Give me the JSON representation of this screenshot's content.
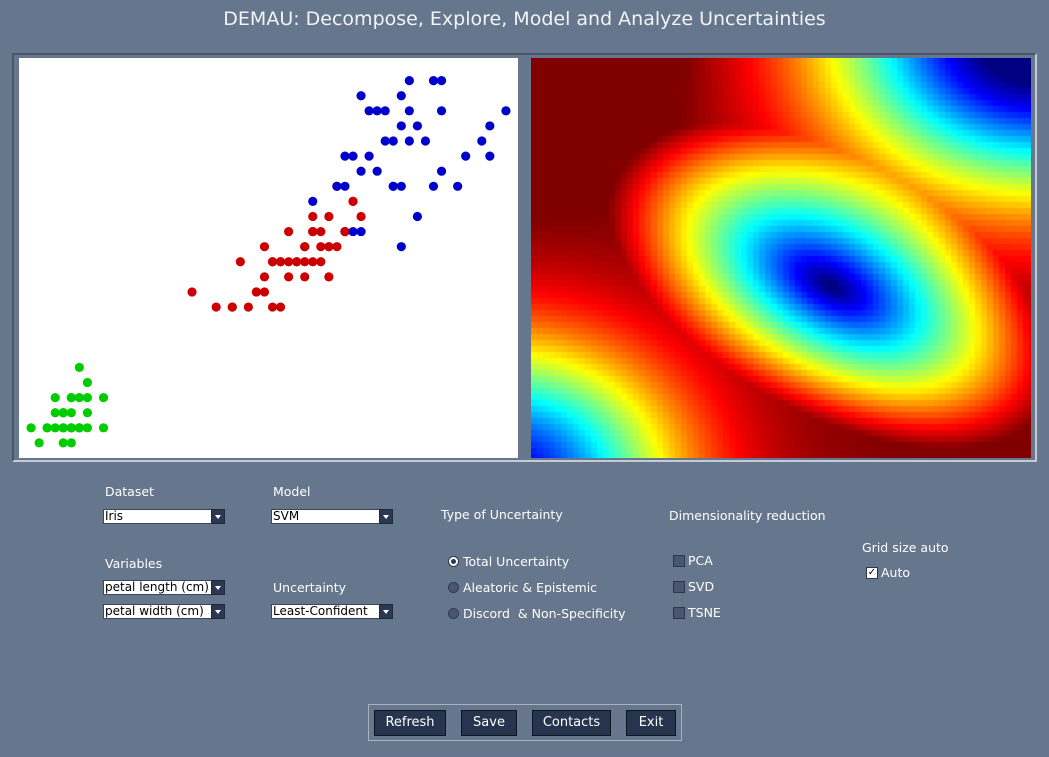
{
  "app": {
    "title": "DEMAU: Decompose, Explore, Model and Analyze Uncertainties"
  },
  "controls": {
    "dataset": {
      "label": "Dataset",
      "value": "Iris"
    },
    "model": {
      "label": "Model",
      "value": "SVM"
    },
    "variables": {
      "label": "Variables",
      "x_value": "petal length (cm)",
      "y_value": "petal width (cm)"
    },
    "uncertainty": {
      "label": "Uncertainty",
      "value": "Least-Confident"
    },
    "uncertainty_type": {
      "label": "Type of Uncertainty",
      "options": [
        "Total Uncertainty",
        "Aleatoric & Epistemic",
        "Discord  & Non-Specificity"
      ],
      "selected": "Total Uncertainty"
    },
    "dim_reduction": {
      "label": "Dimensionality reduction",
      "options": [
        "PCA",
        "SVD",
        "TSNE"
      ]
    },
    "grid_size": {
      "label": "Grid size auto",
      "checkbox_label": "Auto",
      "checked": true
    }
  },
  "buttons": {
    "refresh": "Refresh",
    "save": "Save",
    "contacts": "Contacts",
    "exit": "Exit"
  },
  "colors": {
    "background": "#66768c",
    "setosa": "#00cc00",
    "versicolor": "#cc0000",
    "virginica": "#0000cc"
  },
  "chart_data": [
    {
      "type": "scatter",
      "xlim": [
        0.85,
        7.05
      ],
      "ylim": [
        0.0,
        2.65
      ],
      "series": [
        {
          "color": "#00cc00",
          "points": [
            [
              1.4,
              0.2
            ],
            [
              1.3,
              0.2
            ],
            [
              1.5,
              0.2
            ],
            [
              1.4,
              0.2
            ],
            [
              1.7,
              0.4
            ],
            [
              1.4,
              0.3
            ],
            [
              1.5,
              0.2
            ],
            [
              1.5,
              0.1
            ],
            [
              1.5,
              0.2
            ],
            [
              1.6,
              0.2
            ],
            [
              1.4,
              0.1
            ],
            [
              1.1,
              0.1
            ],
            [
              1.2,
              0.2
            ],
            [
              1.5,
              0.4
            ],
            [
              1.3,
              0.4
            ],
            [
              1.4,
              0.3
            ],
            [
              1.7,
              0.3
            ],
            [
              1.5,
              0.3
            ],
            [
              1.7,
              0.2
            ],
            [
              1.5,
              0.4
            ],
            [
              1.0,
              0.2
            ],
            [
              1.7,
              0.5
            ],
            [
              1.9,
              0.2
            ],
            [
              1.6,
              0.2
            ],
            [
              1.6,
              0.4
            ],
            [
              1.6,
              0.6
            ],
            [
              1.3,
              0.3
            ],
            [
              1.9,
              0.4
            ],
            [
              1.6,
              0.2
            ],
            [
              1.2,
              0.2
            ],
            [
              1.4,
              0.3
            ]
          ]
        },
        {
          "color": "#cc0000",
          "points": [
            [
              4.7,
              1.4
            ],
            [
              4.5,
              1.5
            ],
            [
              4.9,
              1.5
            ],
            [
              4.0,
              1.3
            ],
            [
              4.6,
              1.5
            ],
            [
              4.5,
              1.3
            ],
            [
              4.7,
              1.6
            ],
            [
              3.3,
              1.0
            ],
            [
              4.6,
              1.3
            ],
            [
              3.9,
              1.4
            ],
            [
              3.5,
              1.0
            ],
            [
              4.2,
              1.5
            ],
            [
              4.0,
              1.0
            ],
            [
              4.7,
              1.4
            ],
            [
              3.6,
              1.3
            ],
            [
              4.4,
              1.4
            ],
            [
              4.1,
              1.0
            ],
            [
              4.5,
              1.5
            ],
            [
              3.9,
              1.1
            ],
            [
              4.8,
              1.8
            ],
            [
              4.0,
              1.3
            ],
            [
              4.9,
              1.5
            ],
            [
              4.7,
              1.2
            ],
            [
              4.3,
              1.3
            ],
            [
              4.4,
              1.4
            ],
            [
              5.0,
              1.7
            ],
            [
              3.8,
              1.1
            ],
            [
              3.7,
              1.0
            ],
            [
              3.9,
              1.2
            ],
            [
              5.1,
              1.6
            ],
            [
              4.5,
              1.6
            ],
            [
              4.8,
              1.8
            ],
            [
              4.2,
              1.3
            ],
            [
              3.0,
              1.1
            ],
            [
              4.1,
              1.3
            ],
            [
              4.4,
              1.2
            ],
            [
              4.6,
              1.4
            ],
            [
              4.3,
              1.3
            ],
            [
              4.2,
              1.2
            ],
            [
              4.1,
              1.3
            ],
            [
              4.9,
              1.5
            ],
            [
              4.8,
              1.4
            ],
            [
              5.0,
              1.7
            ],
            [
              4.5,
              1.5
            ],
            [
              3.5,
              1.0
            ],
            [
              3.8,
              1.1
            ],
            [
              4.4,
              1.3
            ]
          ]
        },
        {
          "color": "#0000cc",
          "points": [
            [
              6.0,
              2.5
            ],
            [
              5.1,
              1.9
            ],
            [
              5.9,
              2.1
            ],
            [
              5.6,
              1.8
            ],
            [
              5.8,
              2.2
            ],
            [
              6.6,
              2.1
            ],
            [
              4.5,
              1.7
            ],
            [
              6.3,
              1.8
            ],
            [
              6.1,
              2.5
            ],
            [
              5.3,
              1.9
            ],
            [
              5.5,
              2.1
            ],
            [
              5.0,
              2.0
            ],
            [
              5.1,
              2.4
            ],
            [
              5.3,
              2.3
            ],
            [
              5.5,
              1.8
            ],
            [
              6.7,
              2.2
            ],
            [
              6.9,
              2.3
            ],
            [
              5.0,
              1.5
            ],
            [
              5.7,
              2.3
            ],
            [
              4.9,
              2.0
            ],
            [
              6.7,
              2.0
            ],
            [
              4.9,
              1.8
            ],
            [
              5.7,
              2.1
            ],
            [
              6.0,
              1.8
            ],
            [
              4.8,
              1.8
            ],
            [
              5.8,
              1.6
            ],
            [
              6.1,
              1.9
            ],
            [
              6.4,
              2.0
            ],
            [
              5.6,
              2.2
            ],
            [
              5.1,
              1.5
            ],
            [
              5.6,
              1.4
            ],
            [
              6.1,
              2.3
            ],
            [
              5.6,
              2.4
            ],
            [
              5.5,
              1.8
            ],
            [
              5.4,
              2.1
            ],
            [
              5.2,
              2.3
            ],
            [
              5.7,
              2.5
            ],
            [
              5.2,
              2.0
            ],
            [
              5.4,
              2.3
            ]
          ]
        }
      ]
    },
    {
      "type": "heatmap",
      "colormap": "jet",
      "description_values": "uncertainty surface, minimum near center-right, maximum toward bottom-right and top-left corners"
    }
  ]
}
